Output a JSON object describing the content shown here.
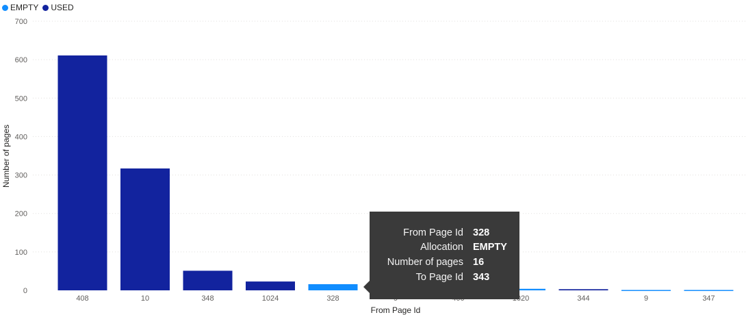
{
  "legend": [
    {
      "label": "EMPTY",
      "color": "#118dff"
    },
    {
      "label": "USED",
      "color": "#12239e"
    }
  ],
  "colors": {
    "EMPTY": "#118dff",
    "USED": "#12239e",
    "axis_text": "#605e5c",
    "gridline": "#e1dfdd",
    "tooltip_bg": "#3a3a3a"
  },
  "chart_data": {
    "type": "bar",
    "xlabel": "From Page Id",
    "ylabel": "Number of pages",
    "ylim": [
      0,
      700
    ],
    "yticks": [
      0,
      100,
      200,
      300,
      400,
      500,
      600,
      700
    ],
    "grid": true,
    "legend_position": "top-left",
    "categories": [
      "408",
      "10",
      "348",
      "1024",
      "328",
      "9",
      "400",
      "1020",
      "344",
      "9",
      "347"
    ],
    "values": [
      611,
      317,
      51,
      23,
      16,
      3,
      5,
      4,
      3,
      1,
      1
    ],
    "allocation": [
      "USED",
      "USED",
      "USED",
      "USED",
      "EMPTY",
      "USED",
      "USED",
      "EMPTY",
      "USED",
      "EMPTY",
      "EMPTY"
    ]
  },
  "tooltip": {
    "rows": [
      {
        "label": "From Page Id",
        "value": "328"
      },
      {
        "label": "Allocation",
        "value": "EMPTY"
      },
      {
        "label": "Number of pages",
        "value": "16"
      },
      {
        "label": "To Page Id",
        "value": "343"
      }
    ]
  }
}
